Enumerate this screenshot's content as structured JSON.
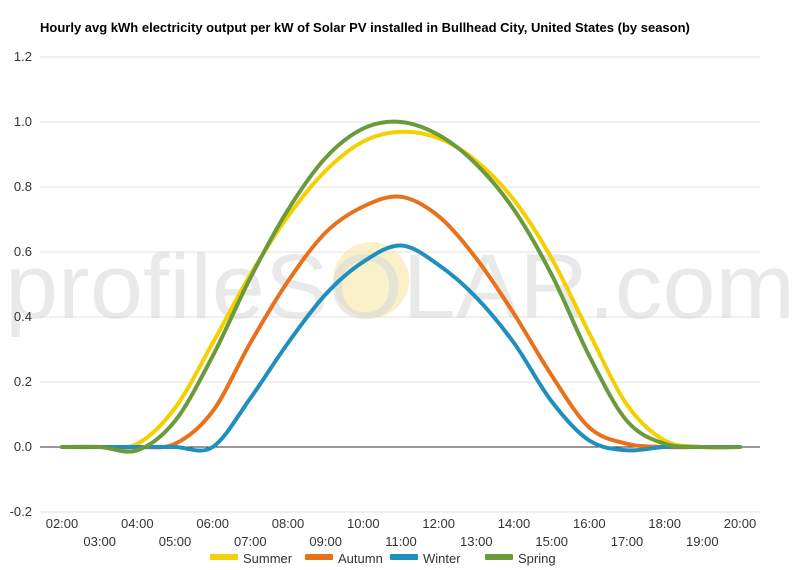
{
  "chart_data": {
    "type": "line",
    "title": "Hourly avg kWh electricity output per kW of Solar PV installed in Bullhead City, United States (by season)",
    "watermark": "profileSOLAR.com",
    "x_ticks_upper": [
      "02:00",
      "04:00",
      "06:00",
      "08:00",
      "10:00",
      "12:00",
      "14:00",
      "16:00",
      "18:00",
      "20:00"
    ],
    "x_ticks_lower": [
      "03:00",
      "05:00",
      "07:00",
      "09:00",
      "11:00",
      "13:00",
      "15:00",
      "17:00",
      "19:00"
    ],
    "y_ticks": [
      "1.2",
      "1.0",
      "0.8",
      "0.6",
      "0.4",
      "0.2",
      "0.0",
      "-0.2"
    ],
    "ylim": [
      -0.2,
      1.2
    ],
    "xlim": [
      2,
      20
    ],
    "grid": true,
    "legend_position": "bottom",
    "x": [
      2,
      3,
      4,
      5,
      6,
      7,
      8,
      9,
      10,
      11,
      12,
      13,
      14,
      15,
      16,
      17,
      18,
      19,
      20
    ],
    "series": [
      {
        "name": "Summer",
        "color": "#f5d000",
        "values": [
          0,
          0,
          0.01,
          0.12,
          0.32,
          0.53,
          0.71,
          0.85,
          0.94,
          0.97,
          0.95,
          0.88,
          0.76,
          0.58,
          0.35,
          0.13,
          0.02,
          0,
          0
        ]
      },
      {
        "name": "Autumn",
        "color": "#e8711c",
        "values": [
          0,
          0,
          0,
          0.01,
          0.11,
          0.32,
          0.51,
          0.66,
          0.74,
          0.77,
          0.71,
          0.58,
          0.41,
          0.22,
          0.06,
          0.01,
          0,
          0,
          0
        ]
      },
      {
        "name": "Winter",
        "color": "#1f8fbf",
        "values": [
          0,
          0,
          0,
          0,
          0,
          0.15,
          0.32,
          0.47,
          0.57,
          0.62,
          0.56,
          0.46,
          0.32,
          0.14,
          0.02,
          -0.01,
          0,
          0,
          0
        ]
      },
      {
        "name": "Spring",
        "color": "#6b9a3c",
        "values": [
          0,
          0,
          -0.01,
          0.08,
          0.28,
          0.52,
          0.73,
          0.89,
          0.98,
          1.0,
          0.96,
          0.87,
          0.73,
          0.53,
          0.28,
          0.08,
          0.01,
          0,
          0
        ]
      }
    ]
  }
}
